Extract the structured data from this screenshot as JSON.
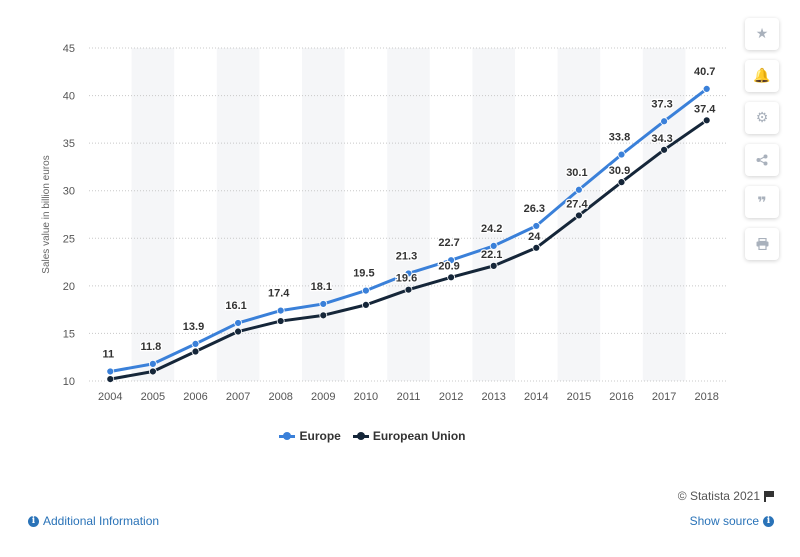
{
  "chart_data": {
    "type": "line",
    "categories": [
      "2004",
      "2005",
      "2006",
      "2007",
      "2008",
      "2009",
      "2010",
      "2011",
      "2012",
      "2013",
      "2014",
      "2015",
      "2016",
      "2017",
      "2018"
    ],
    "series": [
      {
        "name": "Europe",
        "color": "#3a80d9",
        "values": [
          11,
          11.8,
          13.9,
          16.1,
          17.4,
          18.1,
          19.5,
          21.3,
          22.7,
          24.2,
          26.3,
          30.1,
          33.8,
          37.3,
          40.7
        ],
        "labels_shown": true
      },
      {
        "name": "European Union",
        "color": "#152639",
        "values": [
          10.2,
          11,
          13.1,
          15.2,
          16.3,
          16.9,
          18,
          19.6,
          20.9,
          22.1,
          24,
          27.4,
          30.9,
          34.3,
          37.4
        ],
        "labels_shown": [
          false,
          false,
          false,
          false,
          false,
          false,
          false,
          true,
          true,
          true,
          true,
          true,
          true,
          true,
          true
        ]
      }
    ],
    "ylabel": "Sales value in billion euros",
    "xlabel": "",
    "ylim": [
      10,
      45
    ],
    "yticks": [
      10,
      15,
      20,
      25,
      30,
      35,
      40,
      45
    ],
    "grid": true,
    "legend": "bottom-center"
  },
  "legend": {
    "europe": "Europe",
    "eu": "European Union"
  },
  "colors": {
    "europe": "#3a80d9",
    "eu": "#152639",
    "link": "#2a73b8"
  },
  "footer": {
    "additional_info": "Additional Information",
    "show_source": "Show source",
    "credit": "© Statista 2021"
  },
  "sidebar": [
    "star-icon",
    "bell-icon",
    "gear-icon",
    "share-icon",
    "quote-icon",
    "print-icon"
  ]
}
